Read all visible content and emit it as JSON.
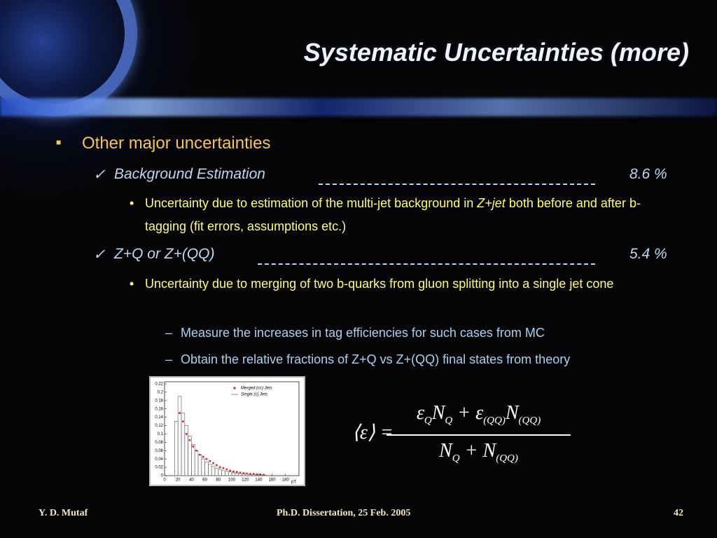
{
  "title": "Systematic Uncertainties (more)",
  "content": {
    "heading": "Other major uncertainties",
    "items": [
      {
        "label": "Background Estimation",
        "value": "8.6 %",
        "detail": [
          "Uncertainty due to estimation of the multi-jet background in",
          "Z+jet",
          "both before and after b-tagging (fit errors, assumptions etc.)"
        ]
      },
      {
        "label": "Z+Q or Z+(QQ)",
        "value": "5.4 %",
        "detail": [
          "Uncertainty due to merging of two b-quarks from gluon splitting into a single jet cone"
        ],
        "subpoints": [
          "Measure the increases in tag efficiencies for such cases from MC",
          "Obtain the relative fractions of Z+Q vs Z+(QQ) final states from theory"
        ]
      }
    ]
  },
  "chart_data": {
    "type": "histogram",
    "xlabel": "pT",
    "xlim": [
      0,
      200
    ],
    "xticks": [
      0,
      20,
      40,
      60,
      80,
      100,
      120,
      140,
      160,
      180
    ],
    "ylim": [
      0,
      0.225
    ],
    "yticks": [
      0,
      0.02,
      0.04,
      0.06,
      0.08,
      0.1,
      0.12,
      0.14,
      0.16,
      0.18,
      0.2,
      0.22
    ],
    "series": [
      {
        "name": "Merged (cc) Jets",
        "color": "#e02020",
        "kind": "points",
        "x": [
          22.5,
          27.5,
          32.5,
          37.5,
          42.5,
          47.5,
          52.5,
          57.5,
          62.5,
          67.5,
          72.5,
          77.5,
          82.5,
          87.5,
          92.5,
          97.5,
          102.5,
          107.5,
          112.5,
          117.5,
          122.5,
          127.5,
          132.5,
          137.5,
          142.5,
          147.5
        ],
        "values": [
          0.15,
          0.13,
          0.1,
          0.085,
          0.07,
          0.06,
          0.05,
          0.045,
          0.04,
          0.035,
          0.03,
          0.025,
          0.02,
          0.018,
          0.015,
          0.012,
          0.01,
          0.009,
          0.007,
          0.006,
          0.005,
          0.004,
          0.004,
          0.003,
          0.003,
          0.002
        ]
      },
      {
        "name": "Single (c) Jets",
        "color": "#707070",
        "kind": "steps",
        "bins": [
          15,
          20,
          25,
          30,
          35,
          40,
          45,
          50,
          55,
          60,
          65,
          70,
          75,
          80,
          85,
          90,
          95,
          100,
          105,
          110,
          115,
          120,
          125,
          130,
          135,
          140,
          145,
          150
        ],
        "values": [
          0.13,
          0.19,
          0.15,
          0.12,
          0.095,
          0.075,
          0.06,
          0.05,
          0.04,
          0.033,
          0.027,
          0.022,
          0.018,
          0.015,
          0.012,
          0.01,
          0.009,
          0.007,
          0.006,
          0.005,
          0.004,
          0.004,
          0.003,
          0.003,
          0.002,
          0.002,
          0.002
        ]
      }
    ]
  },
  "formula": {
    "lhs": "⟨ε⟩",
    "relation": "=",
    "numerator": [
      {
        "base": "ε",
        "sub": "Q"
      },
      {
        "base": "N",
        "sub": "Q"
      },
      {
        "op": "+"
      },
      {
        "base": "ε",
        "sub": "(QQ)"
      },
      {
        "base": "N",
        "sub": "(QQ)"
      }
    ],
    "denominator": [
      {
        "base": "N",
        "sub": "Q"
      },
      {
        "op": "+"
      },
      {
        "base": "N",
        "sub": "(QQ)"
      }
    ]
  },
  "footer": {
    "author": "Y. D. Mutaf",
    "event": "Ph.D. Dissertation, 25 Feb. 2005",
    "page": "42"
  }
}
